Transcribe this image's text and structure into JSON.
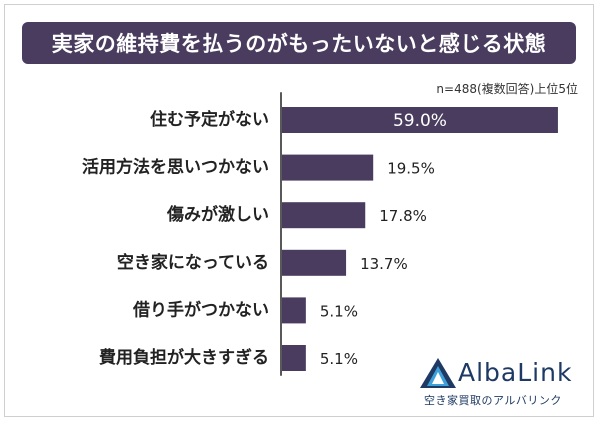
{
  "title": "実家の維持費を払うのがもったいないと感じる状態",
  "note": "n=488(複数回答)上位5位",
  "colors": {
    "title_bg": "#4a3c5e",
    "bar": "#4a3c5e",
    "axis": "#222222",
    "label_text": "#222222",
    "inside_label": "#ffffff",
    "logo_blue": "#1e3a64",
    "logo_light": "#3ea0d8"
  },
  "chart_data": {
    "type": "bar",
    "orientation": "horizontal",
    "categories": [
      "住む予定がない",
      "活用方法を思いつかない",
      "傷みが激しい",
      "空き家になっている",
      "借り手がつかない",
      "費用負担が大きすぎる"
    ],
    "values": [
      59.0,
      19.5,
      17.8,
      13.7,
      5.1,
      5.1
    ],
    "value_labels": [
      "59.0%",
      "19.5%",
      "17.8%",
      "13.7%",
      "5.1%",
      "5.1%"
    ],
    "xlim": [
      0,
      65
    ],
    "grid": false,
    "legend": "none"
  },
  "logo": {
    "icon": "albalink-triangle-icon",
    "wordmark": "AlbaLink",
    "tagline": "空き家買取のアルバリンク"
  }
}
